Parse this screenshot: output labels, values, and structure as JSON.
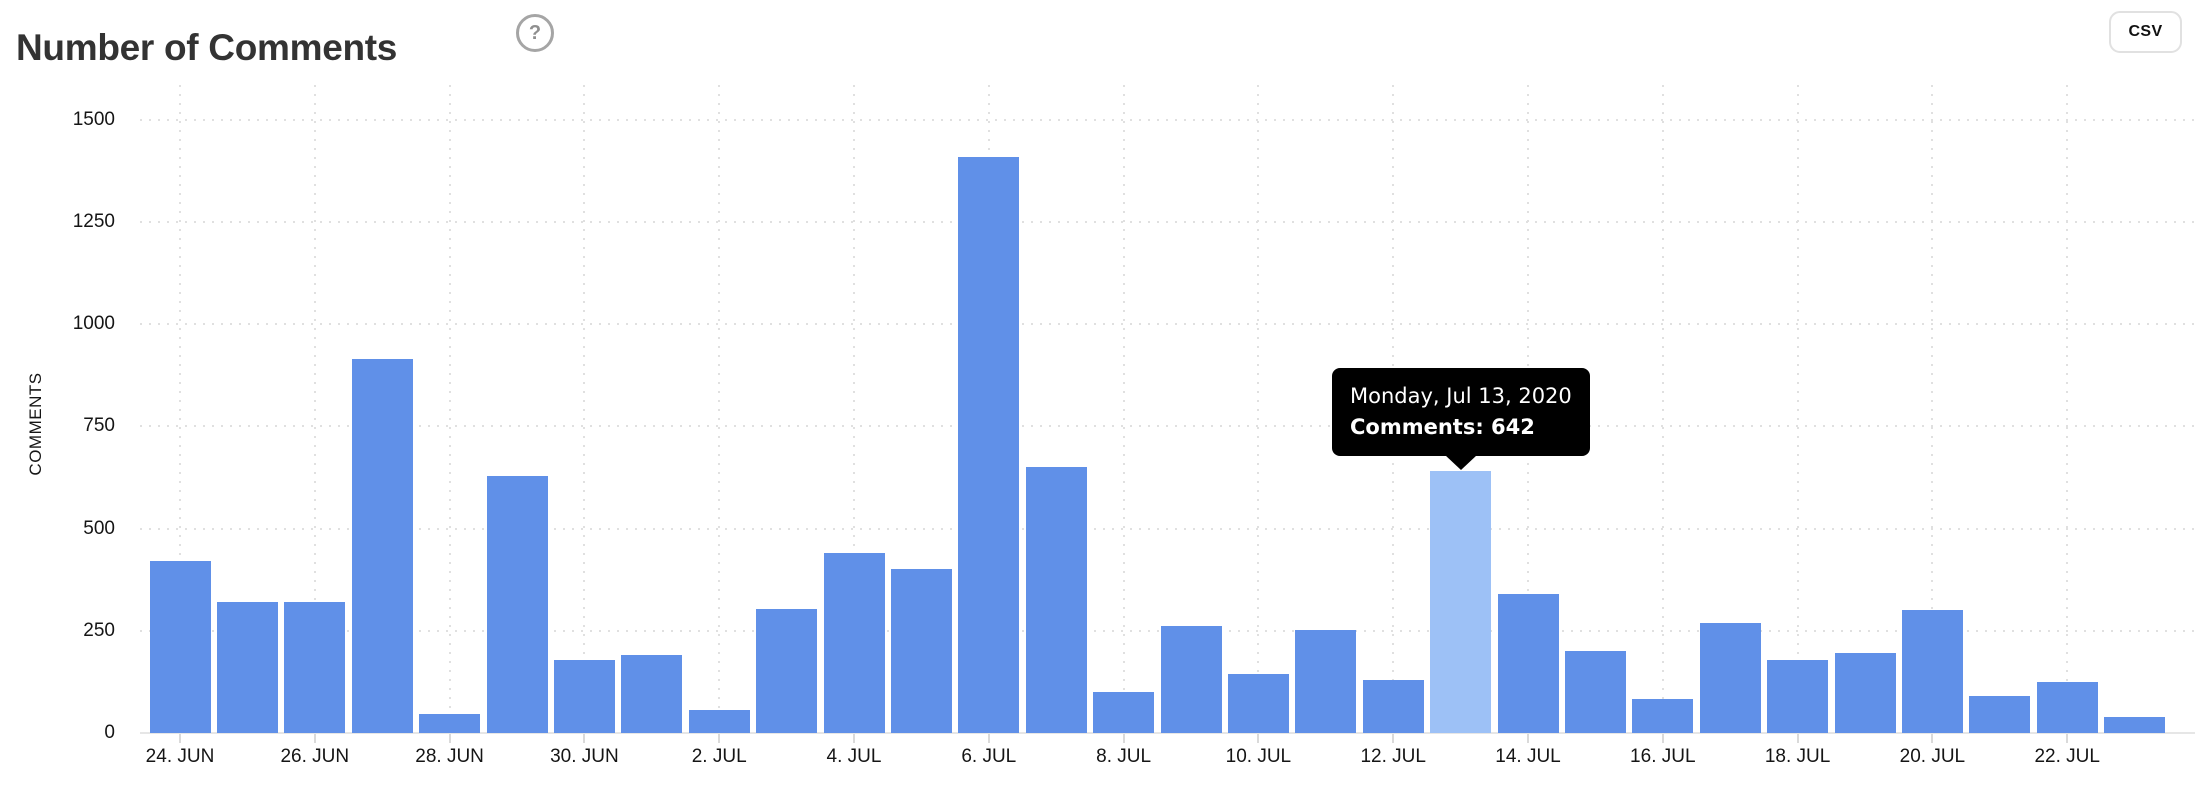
{
  "header": {
    "title": "Number of Comments",
    "help_icon": "?",
    "csv_button_label": "CSV"
  },
  "chart_data": {
    "type": "bar",
    "title": "Number of Comments",
    "xlabel": "",
    "ylabel": "COMMENTS",
    "ylim": [
      0,
      1500
    ],
    "yticks": [
      0,
      250,
      500,
      750,
      1000,
      1250,
      1500
    ],
    "grid": true,
    "legend": "none",
    "bar_color": "#6090e8",
    "highlight_color": "#9dc1f6",
    "categories": [
      "Jun 24",
      "Jun 25",
      "Jun 26",
      "Jun 27",
      "Jun 28",
      "Jun 29",
      "Jun 30",
      "Jul 1",
      "Jul 2",
      "Jul 3",
      "Jul 4",
      "Jul 5",
      "Jul 6",
      "Jul 7",
      "Jul 8",
      "Jul 9",
      "Jul 10",
      "Jul 11",
      "Jul 12",
      "Jul 13",
      "Jul 14",
      "Jul 15",
      "Jul 16",
      "Jul 17",
      "Jul 18",
      "Jul 19",
      "Jul 20",
      "Jul 21",
      "Jul 22",
      "Jul 23"
    ],
    "values": [
      420,
      320,
      320,
      916,
      47,
      628,
      178,
      192,
      57,
      303,
      440,
      400,
      1408,
      650,
      100,
      262,
      145,
      252,
      130,
      642,
      340,
      200,
      84,
      270,
      178,
      196,
      300,
      91,
      125,
      38
    ],
    "xticks": [
      {
        "index": 0,
        "label": "24. JUN"
      },
      {
        "index": 2,
        "label": "26. JUN"
      },
      {
        "index": 4,
        "label": "28. JUN"
      },
      {
        "index": 6,
        "label": "30. JUN"
      },
      {
        "index": 8,
        "label": "2. JUL"
      },
      {
        "index": 10,
        "label": "4. JUL"
      },
      {
        "index": 12,
        "label": "6. JUL"
      },
      {
        "index": 14,
        "label": "8. JUL"
      },
      {
        "index": 16,
        "label": "10. JUL"
      },
      {
        "index": 18,
        "label": "12. JUL"
      },
      {
        "index": 20,
        "label": "14. JUL"
      },
      {
        "index": 22,
        "label": "16. JUL"
      },
      {
        "index": 24,
        "label": "18. JUL"
      },
      {
        "index": 26,
        "label": "20. JUL"
      },
      {
        "index": 28,
        "label": "22. JUL"
      }
    ],
    "highlight_index": 19,
    "tooltip": {
      "date": "Monday, Jul 13, 2020",
      "value_line": "Comments: 642"
    }
  }
}
